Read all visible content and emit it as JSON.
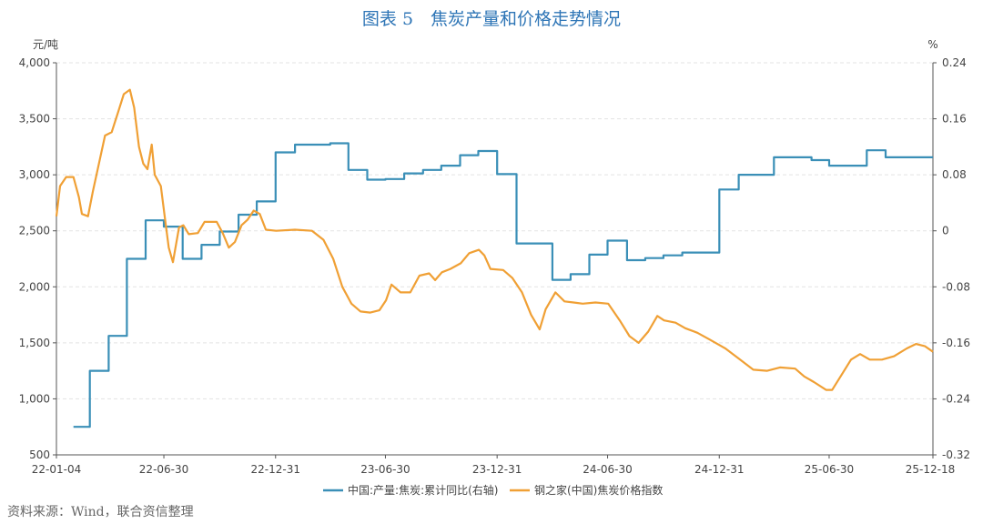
{
  "title": "图表 5　焦炭产量和价格走势情况",
  "source": "资料来源：Wind，联合资信整理",
  "chart_data": {
    "type": "line",
    "left_unit": "元/吨",
    "right_unit": "%",
    "y_left": {
      "range": [
        500,
        4000
      ],
      "ticks": [
        "4,000",
        "3,500",
        "3,000",
        "2,500",
        "2,000",
        "1,500",
        "1,000",
        "500"
      ]
    },
    "y_right": {
      "range": [
        -0.32,
        0.24
      ],
      "ticks": [
        "0.24",
        "0.16",
        "0.08",
        "0",
        "-0.08",
        "-0.16",
        "-0.24",
        "-0.32"
      ]
    },
    "x_range": [
      "2022-01-04",
      "2025-12-18"
    ],
    "x_ticks": [
      {
        "date": "2022-01-04",
        "label": "22-01-04"
      },
      {
        "date": "2022-06-30",
        "label": "22-06-30"
      },
      {
        "date": "2022-12-31",
        "label": "22-12-31"
      },
      {
        "date": "2023-06-30",
        "label": "23-06-30"
      },
      {
        "date": "2023-12-31",
        "label": "23-12-31"
      },
      {
        "date": "2024-06-30",
        "label": "24-06-30"
      },
      {
        "date": "2024-12-31",
        "label": "24-12-31"
      },
      {
        "date": "2025-06-30",
        "label": "25-06-30"
      },
      {
        "date": "2025-12-18",
        "label": "25-12-18"
      }
    ],
    "grid": true,
    "legend_position": "bottom",
    "colors": {
      "growth": "#3a8fb7",
      "price": "#f0a035"
    },
    "series": [
      {
        "name": "中国:产量:焦炭:累计同比(右轴)",
        "axis": "right",
        "step": true,
        "points": [
          [
            "2022-02-01",
            -0.28
          ],
          [
            "2022-02-28",
            -0.2
          ],
          [
            "2022-03-31",
            -0.15
          ],
          [
            "2022-04-30",
            -0.04
          ],
          [
            "2022-05-31",
            0.015
          ],
          [
            "2022-06-30",
            0.006
          ],
          [
            "2022-07-31",
            -0.04
          ],
          [
            "2022-08-31",
            -0.02
          ],
          [
            "2022-09-30",
            -0.001
          ],
          [
            "2022-10-31",
            0.023
          ],
          [
            "2022-11-30",
            0.042
          ],
          [
            "2022-12-31",
            0.112
          ],
          [
            "2023-02-01",
            0.123
          ],
          [
            "2023-03-31",
            0.125
          ],
          [
            "2023-04-30",
            0.087
          ],
          [
            "2023-05-31",
            0.073
          ],
          [
            "2023-06-30",
            0.074
          ],
          [
            "2023-07-31",
            0.082
          ],
          [
            "2023-08-31",
            0.087
          ],
          [
            "2023-09-30",
            0.093
          ],
          [
            "2023-10-31",
            0.108
          ],
          [
            "2023-11-30",
            0.114
          ],
          [
            "2023-12-31",
            0.081
          ],
          [
            "2024-02-01",
            -0.018
          ],
          [
            "2024-03-31",
            -0.07
          ],
          [
            "2024-04-30",
            -0.062
          ],
          [
            "2024-05-31",
            -0.034
          ],
          [
            "2024-06-30",
            -0.014
          ],
          [
            "2024-08-01",
            -0.042
          ],
          [
            "2024-08-31",
            -0.039
          ],
          [
            "2024-09-30",
            -0.035
          ],
          [
            "2024-10-31",
            -0.031
          ],
          [
            "2024-12-31",
            0.059
          ],
          [
            "2025-02-01",
            0.08
          ],
          [
            "2025-03-31",
            0.105
          ],
          [
            "2025-06-01",
            0.101
          ],
          [
            "2025-06-30",
            0.093
          ],
          [
            "2025-08-31",
            0.115
          ],
          [
            "2025-10-01",
            0.105
          ],
          [
            "2025-12-18",
            0.105
          ]
        ]
      },
      {
        "name": "钢之家(中国)焦炭价格指数",
        "axis": "left",
        "step": false,
        "points": [
          [
            "2022-01-04",
            2630
          ],
          [
            "2022-01-10",
            2900
          ],
          [
            "2022-01-20",
            2980
          ],
          [
            "2022-02-01",
            2980
          ],
          [
            "2022-02-10",
            2800
          ],
          [
            "2022-02-15",
            2650
          ],
          [
            "2022-02-25",
            2630
          ],
          [
            "2022-03-05",
            2850
          ],
          [
            "2022-03-15",
            3100
          ],
          [
            "2022-03-25",
            3350
          ],
          [
            "2022-04-05",
            3380
          ],
          [
            "2022-04-15",
            3550
          ],
          [
            "2022-04-25",
            3720
          ],
          [
            "2022-05-05",
            3760
          ],
          [
            "2022-05-12",
            3600
          ],
          [
            "2022-05-20",
            3250
          ],
          [
            "2022-05-27",
            3100
          ],
          [
            "2022-06-03",
            3050
          ],
          [
            "2022-06-10",
            3270
          ],
          [
            "2022-06-15",
            3000
          ],
          [
            "2022-06-25",
            2900
          ],
          [
            "2022-07-02",
            2600
          ],
          [
            "2022-07-08",
            2350
          ],
          [
            "2022-07-15",
            2220
          ],
          [
            "2022-07-25",
            2530
          ],
          [
            "2022-08-01",
            2550
          ],
          [
            "2022-08-10",
            2470
          ],
          [
            "2022-08-25",
            2480
          ],
          [
            "2022-09-05",
            2580
          ],
          [
            "2022-09-15",
            2580
          ],
          [
            "2022-09-25",
            2580
          ],
          [
            "2022-10-05",
            2480
          ],
          [
            "2022-10-15",
            2350
          ],
          [
            "2022-10-25",
            2400
          ],
          [
            "2022-11-05",
            2550
          ],
          [
            "2022-11-15",
            2600
          ],
          [
            "2022-11-25",
            2680
          ],
          [
            "2022-12-05",
            2650
          ],
          [
            "2022-12-15",
            2510
          ],
          [
            "2023-01-01",
            2500
          ],
          [
            "2023-02-01",
            2510
          ],
          [
            "2023-03-01",
            2500
          ],
          [
            "2023-03-20",
            2420
          ],
          [
            "2023-04-05",
            2250
          ],
          [
            "2023-04-20",
            2000
          ],
          [
            "2023-05-05",
            1850
          ],
          [
            "2023-05-20",
            1780
          ],
          [
            "2023-06-05",
            1770
          ],
          [
            "2023-06-20",
            1790
          ],
          [
            "2023-07-01",
            1880
          ],
          [
            "2023-07-10",
            2020
          ],
          [
            "2023-07-25",
            1950
          ],
          [
            "2023-08-10",
            1950
          ],
          [
            "2023-08-25",
            2100
          ],
          [
            "2023-09-10",
            2120
          ],
          [
            "2023-09-20",
            2060
          ],
          [
            "2023-10-01",
            2130
          ],
          [
            "2023-10-15",
            2160
          ],
          [
            "2023-11-01",
            2210
          ],
          [
            "2023-11-15",
            2300
          ],
          [
            "2023-12-01",
            2330
          ],
          [
            "2023-12-10",
            2280
          ],
          [
            "2023-12-20",
            2160
          ],
          [
            "2024-01-10",
            2150
          ],
          [
            "2024-01-25",
            2080
          ],
          [
            "2024-02-10",
            1950
          ],
          [
            "2024-02-25",
            1750
          ],
          [
            "2024-03-10",
            1620
          ],
          [
            "2024-03-20",
            1800
          ],
          [
            "2024-04-05",
            1950
          ],
          [
            "2024-04-20",
            1870
          ],
          [
            "2024-05-05",
            1860
          ],
          [
            "2024-05-20",
            1850
          ],
          [
            "2024-06-10",
            1860
          ],
          [
            "2024-07-01",
            1850
          ],
          [
            "2024-07-20",
            1700
          ],
          [
            "2024-08-05",
            1560
          ],
          [
            "2024-08-20",
            1500
          ],
          [
            "2024-09-05",
            1600
          ],
          [
            "2024-09-20",
            1740
          ],
          [
            "2024-10-01",
            1700
          ],
          [
            "2024-10-20",
            1680
          ],
          [
            "2024-11-05",
            1630
          ],
          [
            "2024-11-25",
            1590
          ],
          [
            "2024-12-15",
            1530
          ],
          [
            "2025-01-10",
            1450
          ],
          [
            "2025-02-01",
            1360
          ],
          [
            "2025-02-25",
            1260
          ],
          [
            "2025-03-20",
            1250
          ],
          [
            "2025-04-10",
            1280
          ],
          [
            "2025-05-05",
            1270
          ],
          [
            "2025-05-20",
            1200
          ],
          [
            "2025-06-05",
            1150
          ],
          [
            "2025-06-25",
            1080
          ],
          [
            "2025-07-05",
            1080
          ],
          [
            "2025-07-20",
            1210
          ],
          [
            "2025-08-05",
            1350
          ],
          [
            "2025-08-20",
            1400
          ],
          [
            "2025-09-05",
            1350
          ],
          [
            "2025-09-25",
            1350
          ],
          [
            "2025-10-15",
            1380
          ],
          [
            "2025-11-05",
            1450
          ],
          [
            "2025-11-20",
            1490
          ],
          [
            "2025-12-05",
            1470
          ],
          [
            "2025-12-18",
            1420
          ]
        ]
      }
    ]
  }
}
